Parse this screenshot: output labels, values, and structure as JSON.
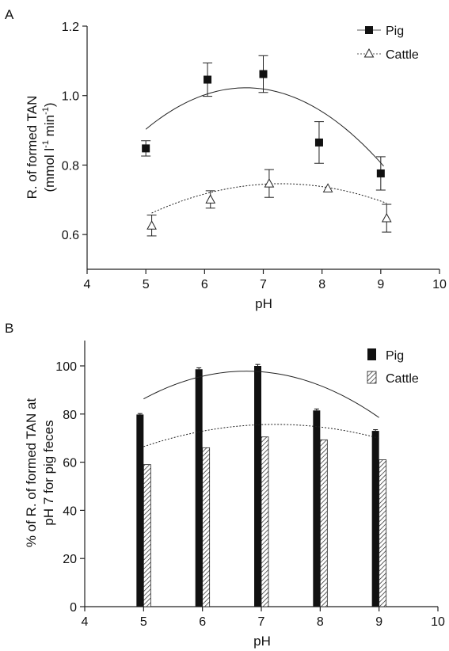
{
  "panels": [
    {
      "label": "A",
      "ylabel_line1": "R. of formed TAN",
      "ylabel_line2": "(mmol l",
      "ylabel_sup1": "-1",
      "ylabel_mid": " min",
      "ylabel_sup2": "-1",
      "ylabel_end": ")",
      "xlabel": "pH",
      "legend": [
        "Pig",
        "Cattle"
      ]
    },
    {
      "label": "B",
      "ylabel_line1": "% of R. of formed TAN at",
      "ylabel_line2": "pH 7 for pig feces",
      "xlabel": "pH",
      "legend": [
        "Pig",
        "Cattle"
      ]
    }
  ],
  "chart_data": [
    {
      "type": "scatter",
      "xlim": [
        4,
        10
      ],
      "ylim": [
        0.5,
        1.2
      ],
      "xticks": [
        4,
        5,
        6,
        7,
        8,
        9,
        10
      ],
      "yticks": [
        0.6,
        0.8,
        1.0,
        1.2
      ],
      "ytick_labels": [
        "0.6",
        "0.8",
        "1.0",
        "1.2"
      ],
      "grid": false,
      "legend_position": "top-right",
      "series": [
        {
          "name": "Pig",
          "marker": "filled-square",
          "x": [
            5.0,
            6.05,
            7.0,
            7.95,
            9.0
          ],
          "y": [
            0.848,
            1.046,
            1.062,
            0.865,
            0.776
          ],
          "err": [
            0.022,
            0.048,
            0.053,
            0.06,
            0.048
          ],
          "fit": "quadratic",
          "fit_coeffs": [
            -0.82357,
            0.55064,
            -0.04106
          ],
          "fit_x": [
            5.0,
            9.05
          ],
          "fit_style": "solid"
        },
        {
          "name": "Cattle",
          "marker": "open-triangle",
          "x": [
            5.1,
            6.1,
            7.1,
            8.1,
            9.1
          ],
          "y": [
            0.626,
            0.701,
            0.747,
            0.733,
            0.647
          ],
          "err": [
            0.03,
            0.025,
            0.04,
            0.0,
            0.04
          ],
          "fit": "quadratic",
          "fit_coeffs": [
            -0.18216,
            0.25429,
            -0.01741
          ],
          "fit_x": [
            5.1,
            9.1
          ],
          "fit_style": "dotted"
        }
      ]
    },
    {
      "type": "bar",
      "xlim": [
        4,
        10
      ],
      "ylim": [
        0,
        100
      ],
      "xticks": [
        4,
        5,
        6,
        7,
        8,
        9,
        10
      ],
      "yticks": [
        0,
        20,
        40,
        60,
        80,
        100
      ],
      "grid": false,
      "legend_position": "top-right",
      "categories": [
        5,
        6,
        7,
        8,
        9
      ],
      "series": [
        {
          "name": "Pig",
          "fill": "solid-black",
          "values": [
            79.8,
            98.6,
            100.0,
            81.5,
            73.0
          ],
          "err": [
            0.4,
            0.6,
            0.6,
            0.6,
            0.5
          ],
          "fit": "quadratic",
          "fit_coeffs": [
            -74.44,
            51.08,
            -3.787
          ],
          "fit_x": [
            5,
            9
          ],
          "fit_style": "solid"
        },
        {
          "name": "Cattle",
          "fill": "hatched",
          "values": [
            59.0,
            66.0,
            70.5,
            69.3,
            61.0
          ],
          "fit": "quadratic",
          "fit_coeffs": [
            -21.14,
            26.77,
            -1.85
          ],
          "fit_x": [
            5,
            9
          ],
          "fit_style": "dotted"
        }
      ]
    }
  ]
}
